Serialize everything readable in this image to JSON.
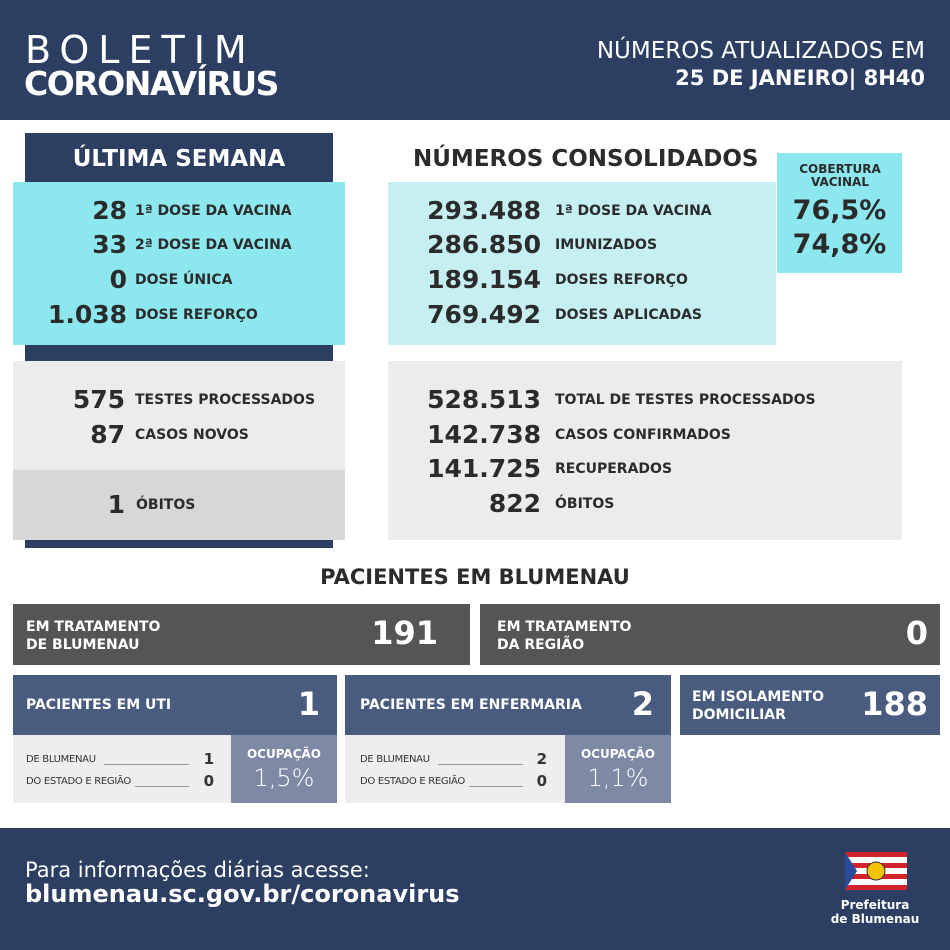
{
  "header": {
    "title": "BOLETIM",
    "subtitle": "CORONAVÍRUS",
    "update_line1": "NÚMEROS ATUALIZADOS EM",
    "update_line2": "25 DE JANEIRO| 8H40"
  },
  "ultima_semana": {
    "title": "ÚLTIMA SEMANA",
    "vacina": [
      {
        "value": "28",
        "label": "1ª DOSE DA VACINA"
      },
      {
        "value": "33",
        "label": "2ª DOSE DA VACINA"
      },
      {
        "value": "0",
        "label": "DOSE ÚNICA"
      },
      {
        "value": "1.038",
        "label": "DOSE REFORÇO"
      }
    ],
    "testes": [
      {
        "value": "575",
        "label": "TESTES PROCESSADOS"
      },
      {
        "value": "87",
        "label": "CASOS NOVOS"
      }
    ],
    "obitos": {
      "value": "1",
      "label": "ÓBITOS"
    }
  },
  "consolidados": {
    "title": "NÚMEROS CONSOLIDADOS",
    "vacina": [
      {
        "value": "293.488",
        "label": "1ª DOSE DA VACINA"
      },
      {
        "value": "286.850",
        "label": "IMUNIZADOS"
      },
      {
        "value": "189.154",
        "label": "DOSES REFORÇO"
      },
      {
        "value": "769.492",
        "label": "DOSES APLICADAS"
      }
    ],
    "cobertura": {
      "title": "COBERTURA VACINAL",
      "values": [
        "76,5%",
        "74,8%"
      ]
    },
    "testes": [
      {
        "value": "528.513",
        "label": "TOTAL DE TESTES PROCESSADOS"
      },
      {
        "value": "142.738",
        "label": "CASOS CONFIRMADOS"
      },
      {
        "value": "141.725",
        "label": "RECUPERADOS"
      },
      {
        "value": "822",
        "label": "ÓBITOS"
      }
    ]
  },
  "pacientes": {
    "title": "PACIENTES EM BLUMENAU",
    "tratamento": [
      {
        "label": "EM TRATAMENTO DE BLUMENAU",
        "value": "191"
      },
      {
        "label": "EM TRATAMENTO DA REGIÃO",
        "value": "0"
      }
    ],
    "uti": {
      "label": "PACIENTES EM UTI",
      "value": "1",
      "de_blumenau_label": "DE BLUMENAU",
      "de_blumenau": "1",
      "estado_label": "DO ESTADO E REGIÃO",
      "estado": "0",
      "ocupacao_label": "OCUPAÇÃO",
      "ocupacao": "1,5%"
    },
    "enfermaria": {
      "label": "PACIENTES EM ENFERMARIA",
      "value": "2",
      "de_blumenau_label": "DE BLUMENAU",
      "de_blumenau": "2",
      "estado_label": "DO ESTADO E REGIÃO",
      "estado": "0",
      "ocupacao_label": "OCUPAÇÃO",
      "ocupacao": "1,1%"
    },
    "isolamento": {
      "label": "EM ISOLAMENTO DOMICILIAR",
      "value": "188"
    }
  },
  "footer": {
    "line1": "Para informações diárias acesse:",
    "line2": "blumenau.sc.gov.br/coronavirus",
    "logo_line1": "Prefeitura",
    "logo_line2": "de Blumenau"
  }
}
